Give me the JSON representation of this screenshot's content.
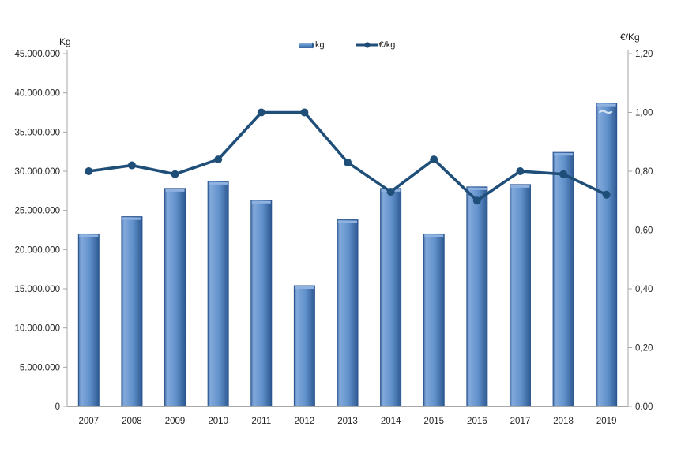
{
  "chart": {
    "left_axis_title": "Kg",
    "right_axis_title": "€/Kg"
  },
  "chart_data": {
    "type": "combo",
    "categories": [
      "2007",
      "2008",
      "2009",
      "2010",
      "2011",
      "2012",
      "2013",
      "2014",
      "2015",
      "2016",
      "2017",
      "2018",
      "2019"
    ],
    "series": [
      {
        "name": "kg",
        "type": "bar",
        "axis": "left",
        "values": [
          22000000,
          24200000,
          27800000,
          28700000,
          26300000,
          15400000,
          23800000,
          27800000,
          22000000,
          28000000,
          28300000,
          32400000,
          38700000
        ]
      },
      {
        "name": "€/kg",
        "type": "line",
        "axis": "right",
        "values": [
          0.8,
          0.82,
          0.79,
          0.84,
          1.0,
          1.0,
          0.83,
          0.73,
          0.84,
          0.7,
          0.8,
          0.79,
          0.72
        ]
      }
    ],
    "left_axis": {
      "title": "Kg",
      "min": 0,
      "max": 45000000,
      "step": 5000000,
      "tick_labels": [
        "45.000.000",
        "40.000.000",
        "35.000.000",
        "30.000.000",
        "25.000.000",
        "20.000.000",
        "15.000.000",
        "10.000.000",
        "5.000.000",
        "0"
      ]
    },
    "right_axis": {
      "title": "€/Kg",
      "min": 0,
      "max": 1.2,
      "step": 0.2,
      "tick_labels": [
        "1,20",
        "1,00",
        "0,80",
        "0,60",
        "0,40",
        "0,20",
        "0,00"
      ]
    },
    "legend_position": "top-center",
    "grid": false,
    "colors": {
      "bar_fill": "#5B8DC8",
      "bar_fill_light": "#82A9DB",
      "bar_fill_dark": "#2E5A94",
      "bar_edge": "#2A5590",
      "bar_top_cap": "#8FB2E0",
      "line": "#1F4E79",
      "axis": "#A6A6A6",
      "bottom_axis": "#757575",
      "text": "#262626"
    }
  }
}
